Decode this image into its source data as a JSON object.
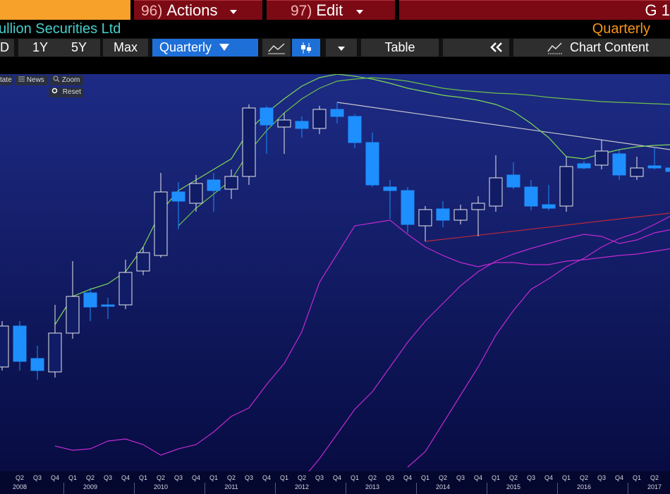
{
  "menu": {
    "actions_number": "96)",
    "actions": "Actions",
    "edit_number": "97)",
    "edit": "Edit",
    "right": "G 1"
  },
  "header": {
    "security": "ullion Securities Ltd",
    "frequency": "Quarterly"
  },
  "toolbar": {
    "ranges": [
      "D",
      "1Y",
      "5Y",
      "Max"
    ],
    "frequency": "Quarterly",
    "table": "Table",
    "chart_content": "Chart Content"
  },
  "chart_tools": [
    "tate",
    "News",
    "Zoom",
    "Reset"
  ],
  "chart_data": {
    "type": "candlestick",
    "categories": [
      null,
      "Q2",
      "Q3",
      "Q4",
      "Q1",
      "Q2",
      "Q3",
      "Q4",
      "Q1",
      "Q2",
      "Q3",
      "Q4",
      "Q1",
      "Q2",
      "Q3",
      "Q4",
      "Q1",
      "Q2",
      "Q3",
      "Q4",
      "Q1",
      "Q2",
      "Q3",
      "Q4",
      "Q1",
      "Q2",
      "Q3",
      "Q4",
      "Q1",
      "Q2",
      "Q3",
      "Q4",
      "Q1",
      "Q2",
      "Q3",
      "Q4",
      "Q1",
      "Q2",
      null
    ],
    "year_labels": [
      "2008",
      "2009",
      "2010",
      "2011",
      "2012",
      "2013",
      "2014",
      "2015",
      "2016",
      "2017"
    ],
    "open": [
      160,
      218,
      172,
      153,
      208,
      265,
      248,
      248,
      296,
      318,
      408,
      392,
      425,
      412,
      430,
      527,
      500,
      508,
      498,
      525,
      515,
      478,
      415,
      410,
      360,
      384,
      368,
      383,
      388,
      432,
      415,
      390,
      388,
      448,
      446,
      462,
      430,
      445,
      442
    ],
    "high": [
      225,
      225,
      190,
      248,
      310,
      272,
      258,
      312,
      330,
      435,
      422,
      432,
      435,
      440,
      532,
      530,
      520,
      515,
      530,
      535,
      518,
      492,
      425,
      415,
      388,
      395,
      390,
      402,
      460,
      450,
      425,
      418,
      458,
      452,
      482,
      468,
      458,
      470,
      450
    ],
    "low": [
      155,
      155,
      142,
      145,
      200,
      225,
      228,
      242,
      290,
      315,
      355,
      380,
      380,
      398,
      418,
      462,
      462,
      485,
      490,
      505,
      470,
      415,
      370,
      350,
      338,
      358,
      362,
      345,
      380,
      412,
      382,
      382,
      380,
      440,
      440,
      425,
      425,
      440,
      435
    ],
    "close": [
      218,
      168,
      155,
      208,
      260,
      245,
      246,
      294,
      322,
      408,
      395,
      420,
      410,
      430,
      527,
      503,
      510,
      498,
      525,
      515,
      478,
      418,
      410,
      362,
      383,
      368,
      383,
      392,
      428,
      415,
      388,
      385,
      444,
      442,
      466,
      432,
      442,
      442,
      437
    ],
    "up_color": "#e8e8e8",
    "down_color": "#1e8fff",
    "series": [
      {
        "color": "#7ed957",
        "values": [
          null,
          null,
          null,
          220,
          260,
          270,
          278,
          295,
          330,
          380,
          410,
          425,
          440,
          455,
          495,
          520,
          540,
          558,
          570,
          575,
          572,
          568,
          562,
          555,
          550,
          545,
          542,
          538,
          532,
          522,
          505,
          485,
          458,
          455,
          462,
          468,
          472,
          474,
          475
        ]
      },
      {
        "color": "#6cc048",
        "values": [
          null,
          null,
          null,
          null,
          null,
          null,
          null,
          null,
          null,
          null,
          360,
          385,
          405,
          425,
          465,
          495,
          520,
          540,
          555,
          565,
          568,
          570,
          568,
          565,
          560,
          555,
          552,
          550,
          548,
          547,
          545,
          542,
          540,
          538,
          536,
          535,
          534,
          533,
          532
        ]
      },
      {
        "color": "#c02ad0",
        "values": [
          null,
          null,
          null,
          48,
          42,
          44,
          55,
          58,
          50,
          35,
          44,
          50,
          68,
          90,
          102,
          135,
          165,
          210,
          280,
          320,
          360,
          364,
          368,
          348,
          330,
          318,
          308,
          302,
          308,
          308,
          305,
          305,
          310,
          312,
          315,
          318,
          320,
          324,
          328
        ]
      },
      {
        "color": "#c02ad0",
        "values": [
          null,
          null,
          null,
          null,
          null,
          null,
          null,
          null,
          null,
          null,
          null,
          null,
          null,
          null,
          null,
          null,
          null,
          0,
          30,
          65,
          100,
          125,
          160,
          195,
          225,
          250,
          275,
          295,
          310,
          320,
          328,
          335,
          342,
          348,
          345,
          335,
          340,
          350,
          355
        ]
      },
      {
        "color": "#c02ad0",
        "values": [
          null,
          null,
          null,
          null,
          null,
          null,
          null,
          null,
          null,
          null,
          null,
          null,
          null,
          null,
          null,
          null,
          null,
          null,
          null,
          null,
          null,
          null,
          null,
          18,
          40,
          80,
          120,
          160,
          205,
          240,
          270,
          285,
          302,
          314,
          330,
          342,
          350,
          362,
          375
        ]
      }
    ],
    "trendlines": [
      {
        "color": "#c8c8d0",
        "x": [
          19,
          37.88
        ],
        "values": [
          535,
          468
        ]
      },
      {
        "color": "#c0283c",
        "x": [
          24,
          37.88
        ],
        "values": [
          338,
          378
        ]
      }
    ],
    "ylim": [
      0,
      575
    ]
  }
}
